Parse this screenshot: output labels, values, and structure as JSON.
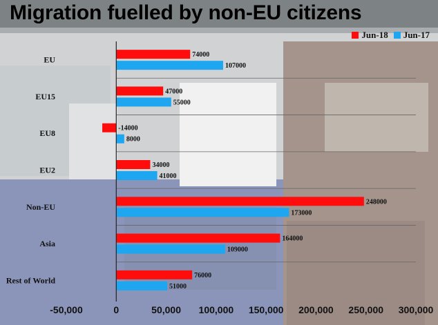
{
  "colors": {
    "series_a": "#ff0d0d",
    "series_b": "#1ea7f0"
  },
  "chart_data": {
    "type": "bar",
    "orientation": "horizontal",
    "title": "Migration fuelled by non-EU citizens",
    "categories": [
      "EU",
      "EU15",
      "EU8",
      "EU2",
      "Non-EU",
      "Asia",
      "Rest of World"
    ],
    "series": [
      {
        "name": "Jun-18",
        "values": [
          74000,
          47000,
          -14000,
          34000,
          248000,
          164000,
          76000
        ]
      },
      {
        "name": "Jun-17",
        "values": [
          107000,
          55000,
          8000,
          41000,
          173000,
          109000,
          51000
        ]
      }
    ],
    "value_labels": [
      [
        "74000",
        "47000",
        "-14000",
        "34000",
        "248000",
        "164000",
        "76000"
      ],
      [
        "107000",
        "55000",
        "8000",
        "41000",
        "173000",
        "109000",
        "51000"
      ]
    ],
    "xlim": [
      -50000,
      300000
    ],
    "xticks": [
      -50000,
      0,
      50000,
      100000,
      150000,
      200000,
      250000,
      300000
    ],
    "xtick_labels": [
      "-50,000",
      "0",
      "50,000",
      "100,000",
      "150,000",
      "200,000",
      "250,000",
      "300,000"
    ],
    "legend_position": "top-right",
    "xlabel": "",
    "ylabel": ""
  }
}
